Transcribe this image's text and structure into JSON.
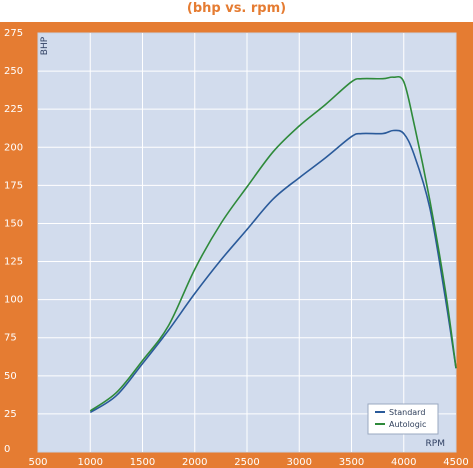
{
  "header": {
    "title": "(bhp vs. rpm)"
  },
  "chart_data": {
    "type": "line",
    "xlabel": "RPM",
    "ylabel": "BHP",
    "xlim": [
      500,
      4500
    ],
    "ylim": [
      0,
      275
    ],
    "x_ticks": [
      "500",
      "1000",
      "1500",
      "2000",
      "2500",
      "3000",
      "3500",
      "4000",
      "4500"
    ],
    "y_ticks": [
      "0",
      "25",
      "50",
      "75",
      "100",
      "125",
      "150",
      "175",
      "200",
      "225",
      "250",
      "275"
    ],
    "grid": true,
    "legend_position": "bottom-right",
    "series": [
      {
        "name": "Standard",
        "color": "#2a5a9a",
        "x": [
          1000,
          1250,
          1500,
          1750,
          2000,
          2250,
          2500,
          2750,
          3000,
          3250,
          3500,
          3600,
          3800,
          3900,
          4000,
          4100,
          4250,
          4400,
          4500
        ],
        "y": [
          26,
          37,
          58,
          80,
          104,
          126,
          146,
          166,
          180,
          193,
          207,
          209,
          209,
          211,
          209,
          195,
          160,
          100,
          55
        ]
      },
      {
        "name": "Autologic",
        "color": "#2e8a3a",
        "x": [
          1000,
          1250,
          1500,
          1750,
          2000,
          2250,
          2500,
          2750,
          3000,
          3250,
          3500,
          3600,
          3800,
          3900,
          4000,
          4100,
          4250,
          4400,
          4500
        ],
        "y": [
          27,
          39,
          60,
          83,
          120,
          150,
          174,
          197,
          214,
          228,
          243,
          245,
          245,
          246,
          243,
          215,
          165,
          105,
          55
        ]
      }
    ]
  }
}
